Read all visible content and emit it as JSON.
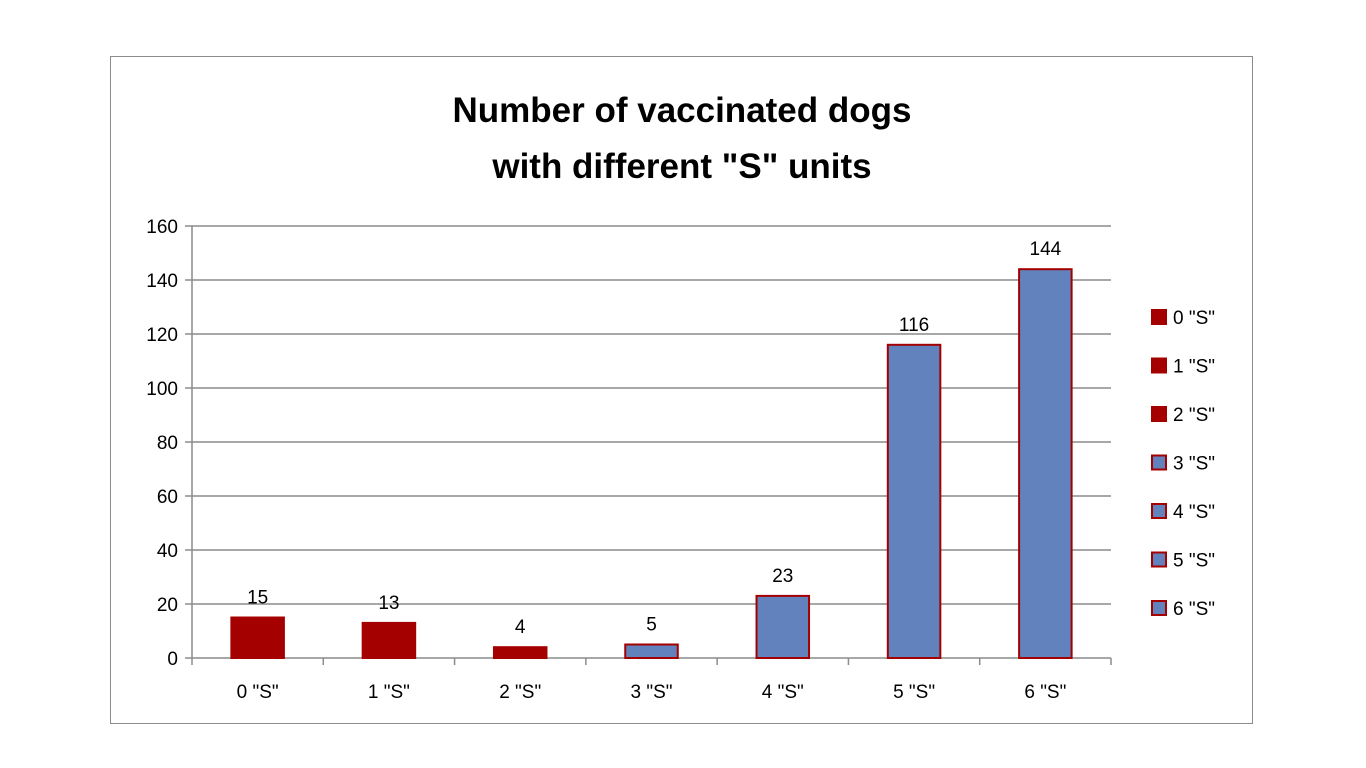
{
  "chart_data": {
    "type": "bar",
    "title_lines": [
      "Number of vaccinated dogs",
      "with different \"S\" units"
    ],
    "xlabel": "",
    "ylabel": "",
    "categories": [
      "0 \"S\"",
      "1 \"S\"",
      "2 \"S\"",
      "3 \"S\"",
      "4 \"S\"",
      "5 \"S\"",
      "6 \"S\""
    ],
    "values": [
      15,
      13,
      4,
      5,
      23,
      116,
      144
    ],
    "data_labels": [
      "15",
      "13",
      "4",
      "5",
      "23",
      "116",
      "144"
    ],
    "bar_colors": [
      "#a40000",
      "#a40000",
      "#a40000",
      "#6182bd",
      "#6182bd",
      "#6182bd",
      "#6182bd"
    ],
    "bar_border_color": "#a40000",
    "ylim": [
      0,
      160
    ],
    "yticks": [
      0,
      20,
      40,
      60,
      80,
      100,
      120,
      140,
      160
    ],
    "grid": true,
    "grid_color": "#8c8c8c",
    "legend": {
      "placement": "right",
      "entries": [
        "0 \"S\"",
        "1 \"S\"",
        "2 \"S\"",
        "3 \"S\"",
        "4 \"S\"",
        "5 \"S\"",
        "6 \"S\""
      ]
    }
  }
}
